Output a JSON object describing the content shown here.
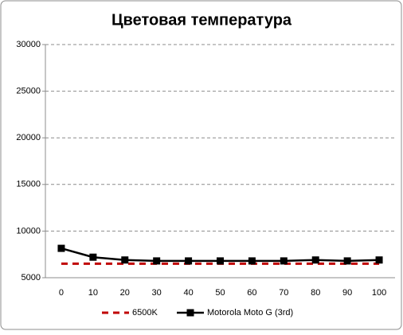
{
  "chart_data": {
    "type": "line",
    "title": "Цветовая температура",
    "categories": [
      "0",
      "10",
      "20",
      "30",
      "40",
      "50",
      "60",
      "70",
      "80",
      "90",
      "100"
    ],
    "series": [
      {
        "name": "6500K",
        "color": "#c00000",
        "dashed": true,
        "marker": false,
        "values": [
          6500,
          6500,
          6500,
          6500,
          6500,
          6500,
          6500,
          6500,
          6500,
          6500,
          6500
        ]
      },
      {
        "name": "Motorola Moto G (3rd)",
        "color": "#000000",
        "dashed": false,
        "marker": true,
        "values": [
          8150,
          7200,
          6900,
          6800,
          6800,
          6800,
          6800,
          6800,
          6900,
          6800,
          6900
        ]
      }
    ],
    "ylim": [
      5000,
      30000
    ],
    "yticks": [
      5000,
      10000,
      15000,
      20000,
      25000,
      30000
    ],
    "grid": true,
    "legend": "bottom"
  }
}
